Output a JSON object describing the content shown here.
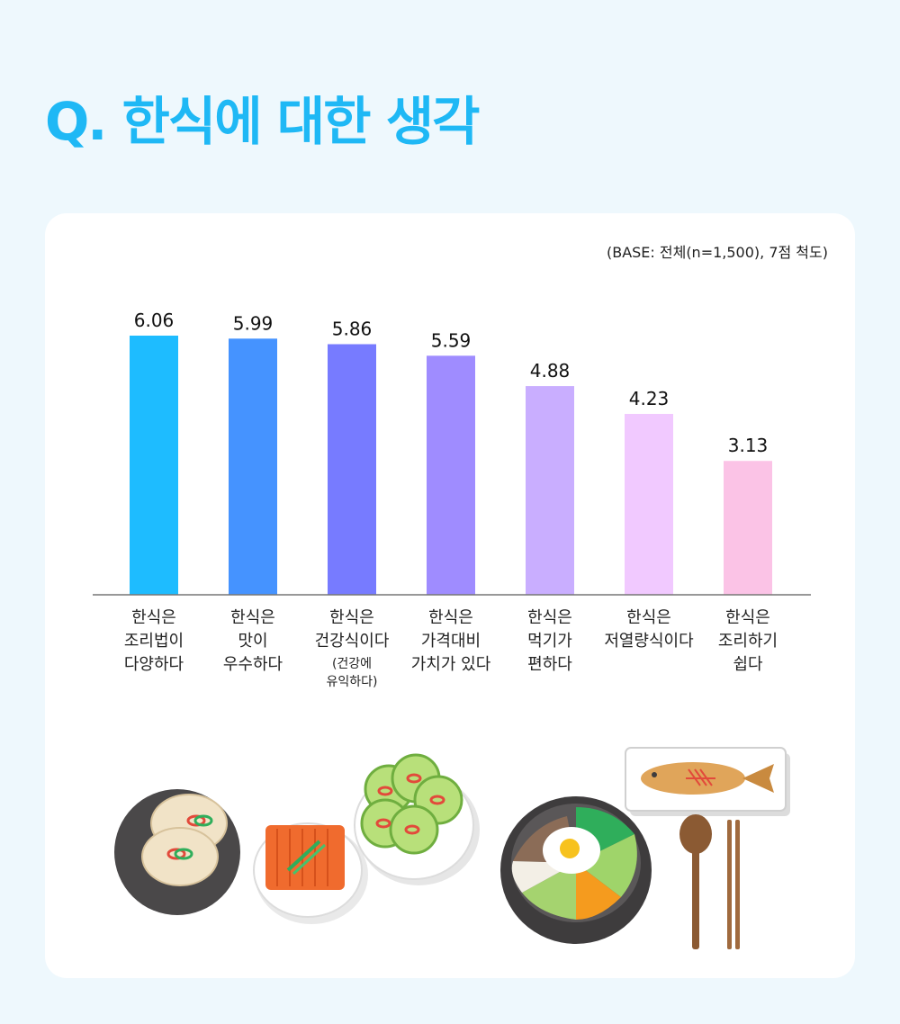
{
  "title": "Q. 한식에 대한 생각",
  "base_note": "(BASE: 전체(n=1,500), 7점 척도)",
  "chart_data": {
    "type": "bar",
    "title": "Q. 한식에 대한 생각",
    "ylim": [
      0,
      7
    ],
    "grid": false,
    "categories": [
      {
        "lines": [
          "한식은",
          "조리법이",
          "다양하다"
        ],
        "sub": []
      },
      {
        "lines": [
          "한식은",
          "맛이",
          "우수하다"
        ],
        "sub": []
      },
      {
        "lines": [
          "한식은",
          "건강식이다"
        ],
        "sub": [
          "(건강에",
          "유익하다)"
        ]
      },
      {
        "lines": [
          "한식은",
          "가격대비",
          "가치가 있다"
        ],
        "sub": []
      },
      {
        "lines": [
          "한식은",
          "먹기가",
          "편하다"
        ],
        "sub": []
      },
      {
        "lines": [
          "한식은",
          "저열량식이다"
        ],
        "sub": []
      },
      {
        "lines": [
          "한식은",
          "조리하기",
          "쉽다"
        ],
        "sub": []
      }
    ],
    "values": [
      6.06,
      5.99,
      5.86,
      5.59,
      4.88,
      4.23,
      3.13
    ],
    "value_labels": [
      "6.06",
      "5.99",
      "5.86",
      "5.59",
      "4.88",
      "4.23",
      "3.13"
    ],
    "colors": [
      "#1ebcff",
      "#4593ff",
      "#777bff",
      "#9f8cff",
      "#c9aeff",
      "#f1c9ff",
      "#fbc3e6"
    ]
  },
  "illustration": {
    "icons": [
      "rice-cake-plate-icon",
      "kimchi-bowl-icon",
      "cucumber-plate-icon",
      "bibimbap-bowl-icon",
      "grilled-fish-plate-icon",
      "spoon-icon",
      "chopsticks-icon"
    ]
  }
}
